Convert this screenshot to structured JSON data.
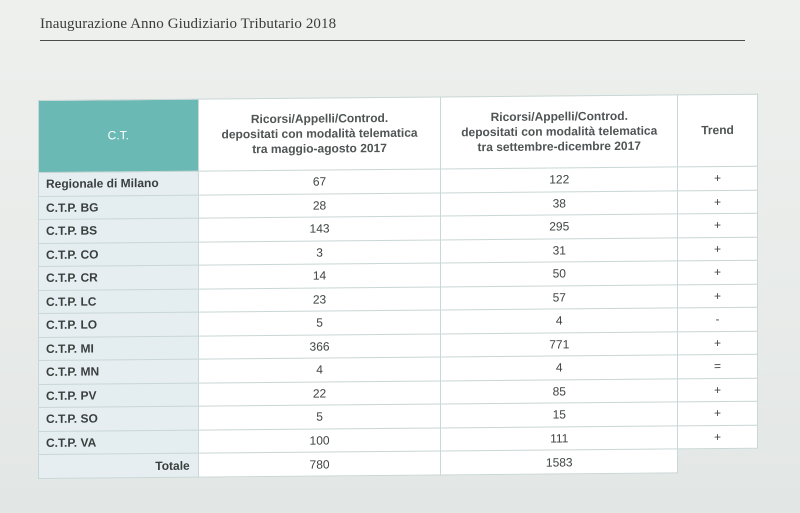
{
  "header": {
    "running_title": "Inaugurazione Anno Giudiziario Tributario 2018"
  },
  "table": {
    "headers": {
      "ct": "C.T.",
      "col1": [
        "Ricorsi/Appelli/Controd.",
        "depositati con modalità telematica",
        "tra maggio-agosto 2017"
      ],
      "col2": [
        "Ricorsi/Appelli/Controd.",
        "depositati con modalità telematica",
        "tra settembre-dicembre 2017"
      ],
      "trend": "Trend"
    },
    "rows": [
      {
        "ct": "Regionale di Milano",
        "v1": "67",
        "v2": "122",
        "trend": "+"
      },
      {
        "ct": "C.T.P. BG",
        "v1": "28",
        "v2": "38",
        "trend": "+"
      },
      {
        "ct": "C.T.P. BS",
        "v1": "143",
        "v2": "295",
        "trend": "+"
      },
      {
        "ct": "C.T.P. CO",
        "v1": "3",
        "v2": "31",
        "trend": "+"
      },
      {
        "ct": "C.T.P. CR",
        "v1": "14",
        "v2": "50",
        "trend": "+"
      },
      {
        "ct": "C.T.P. LC",
        "v1": "23",
        "v2": "57",
        "trend": "+"
      },
      {
        "ct": "C.T.P. LO",
        "v1": "5",
        "v2": "4",
        "trend": "-"
      },
      {
        "ct": "C.T.P. MI",
        "v1": "366",
        "v2": "771",
        "trend": "+"
      },
      {
        "ct": "C.T.P. MN",
        "v1": "4",
        "v2": "4",
        "trend": "="
      },
      {
        "ct": "C.T.P. PV",
        "v1": "22",
        "v2": "85",
        "trend": "+"
      },
      {
        "ct": "C.T.P. SO",
        "v1": "5",
        "v2": "15",
        "trend": "+"
      },
      {
        "ct": "C.T.P. VA",
        "v1": "100",
        "v2": "111",
        "trend": "+"
      }
    ],
    "total": {
      "label": "Totale",
      "v1": "780",
      "v2": "1583"
    }
  },
  "colors": {
    "header_accent": "#6ab9b5",
    "border": "#c9d7d6",
    "ct_cell": "#e6eef1"
  }
}
